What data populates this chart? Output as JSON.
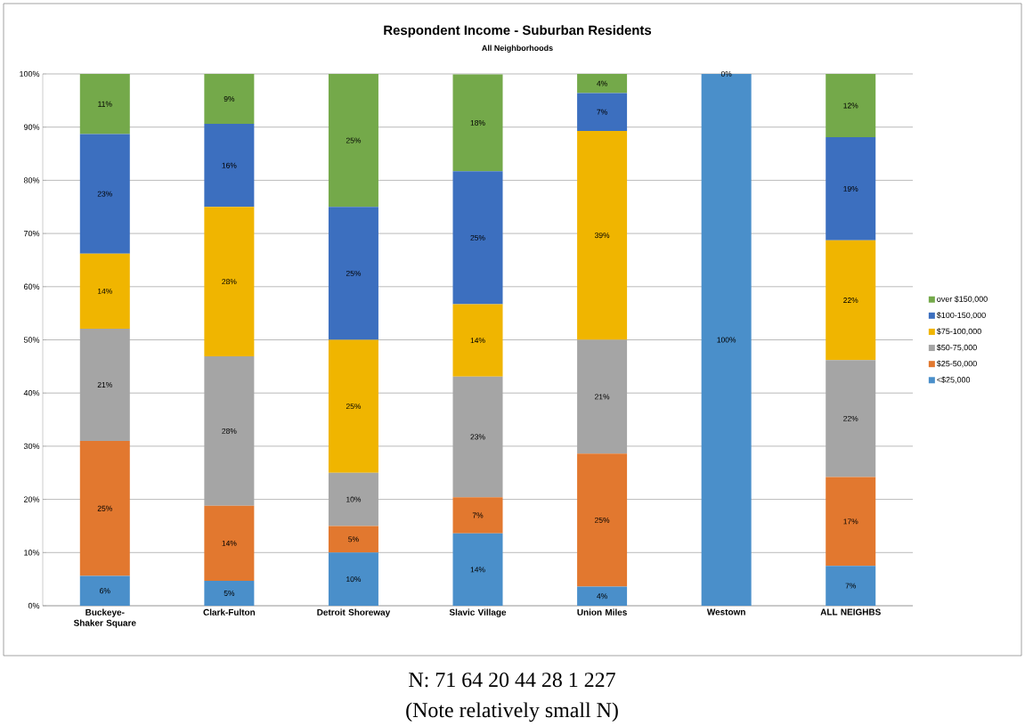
{
  "chart_data": {
    "type": "bar",
    "stacked": true,
    "title": "Respondent Income - Suburban Residents",
    "subtitle": "All Neighborhoods",
    "categories": [
      "Buckeye-Shaker Square",
      "Clark-Fulton",
      "Detroit Shoreway",
      "Slavic Village",
      "Union Miles",
      "Westown",
      "ALL NEIGHBS"
    ],
    "series": [
      {
        "name": "<$25,000",
        "color": "#4a8fca",
        "values": [
          5.6,
          4.7,
          10,
          13.6,
          3.6,
          100,
          7.5
        ],
        "value_labels": [
          "6%",
          "5%",
          "10%",
          "14%",
          "4%",
          "100%",
          "7%"
        ]
      },
      {
        "name": "$25-50,000",
        "color": "#e2782f",
        "values": [
          25.4,
          14.1,
          5,
          6.8,
          25,
          0,
          16.7
        ],
        "value_labels": [
          "25%",
          "14%",
          "5%",
          "7%",
          "25%",
          null,
          "17%"
        ]
      },
      {
        "name": "$50-75,000",
        "color": "#a5a5a5",
        "values": [
          21.1,
          28.1,
          10,
          22.7,
          21.4,
          0,
          22.0
        ],
        "value_labels": [
          "21%",
          "28%",
          "10%",
          "23%",
          "21%",
          null,
          "22%"
        ]
      },
      {
        "name": "$75-100,000",
        "color": "#f0b500",
        "values": [
          14.1,
          28.1,
          25,
          13.6,
          39.3,
          0,
          22.5
        ],
        "value_labels": [
          "14%",
          "28%",
          "25%",
          "14%",
          "39%",
          null,
          "22%"
        ]
      },
      {
        "name": "$100-150,000",
        "color": "#3c6fbf",
        "values": [
          22.5,
          15.6,
          25,
          25,
          7.1,
          0,
          19.4
        ],
        "value_labels": [
          "23%",
          "16%",
          "25%",
          "25%",
          "7%",
          null,
          "19%"
        ]
      },
      {
        "name": "over $150,000",
        "color": "#74a94a",
        "values": [
          11.3,
          9.4,
          25,
          18.2,
          3.6,
          0,
          11.9
        ],
        "value_labels": [
          "11%",
          "9%",
          "25%",
          "18%",
          "4%",
          "0%",
          "12%"
        ]
      }
    ],
    "ylim": [
      0,
      100
    ],
    "yticks": [
      {
        "value": 0,
        "label": "0%"
      },
      {
        "value": 10,
        "label": "10%"
      },
      {
        "value": 20,
        "label": "20%"
      },
      {
        "value": 30,
        "label": "30%"
      },
      {
        "value": 40,
        "label": "40%"
      },
      {
        "value": 50,
        "label": "50%"
      },
      {
        "value": 60,
        "label": "60%"
      },
      {
        "value": 70,
        "label": "70%"
      },
      {
        "value": 80,
        "label": "80%"
      },
      {
        "value": 90,
        "label": "90%"
      },
      {
        "value": 100,
        "label": "100%"
      }
    ],
    "grid": "y",
    "legend": "right",
    "annotations": [
      "N:  71    64    20    44    28    1    227",
      "(Note relatively small N)"
    ]
  }
}
